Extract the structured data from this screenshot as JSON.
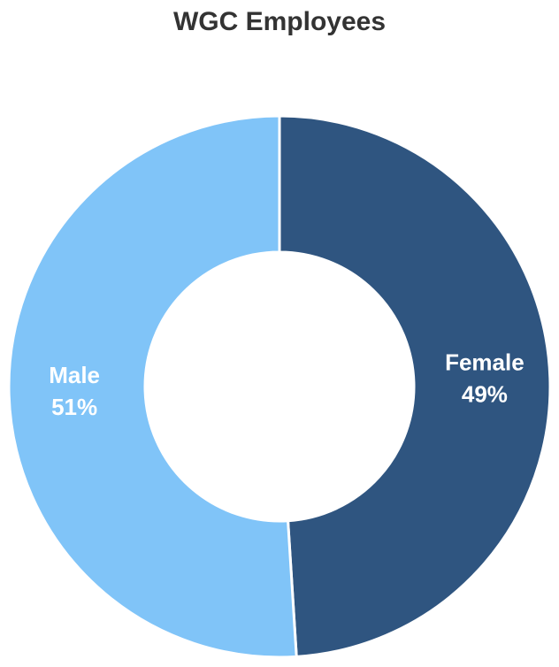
{
  "chart_data": {
    "type": "donut",
    "title": "WGC Employees",
    "categories": [
      "Female",
      "Male"
    ],
    "values": [
      49,
      51
    ],
    "value_labels": [
      "49%",
      "51%"
    ],
    "colors": [
      "#2f5580",
      "#80c4f8"
    ]
  }
}
